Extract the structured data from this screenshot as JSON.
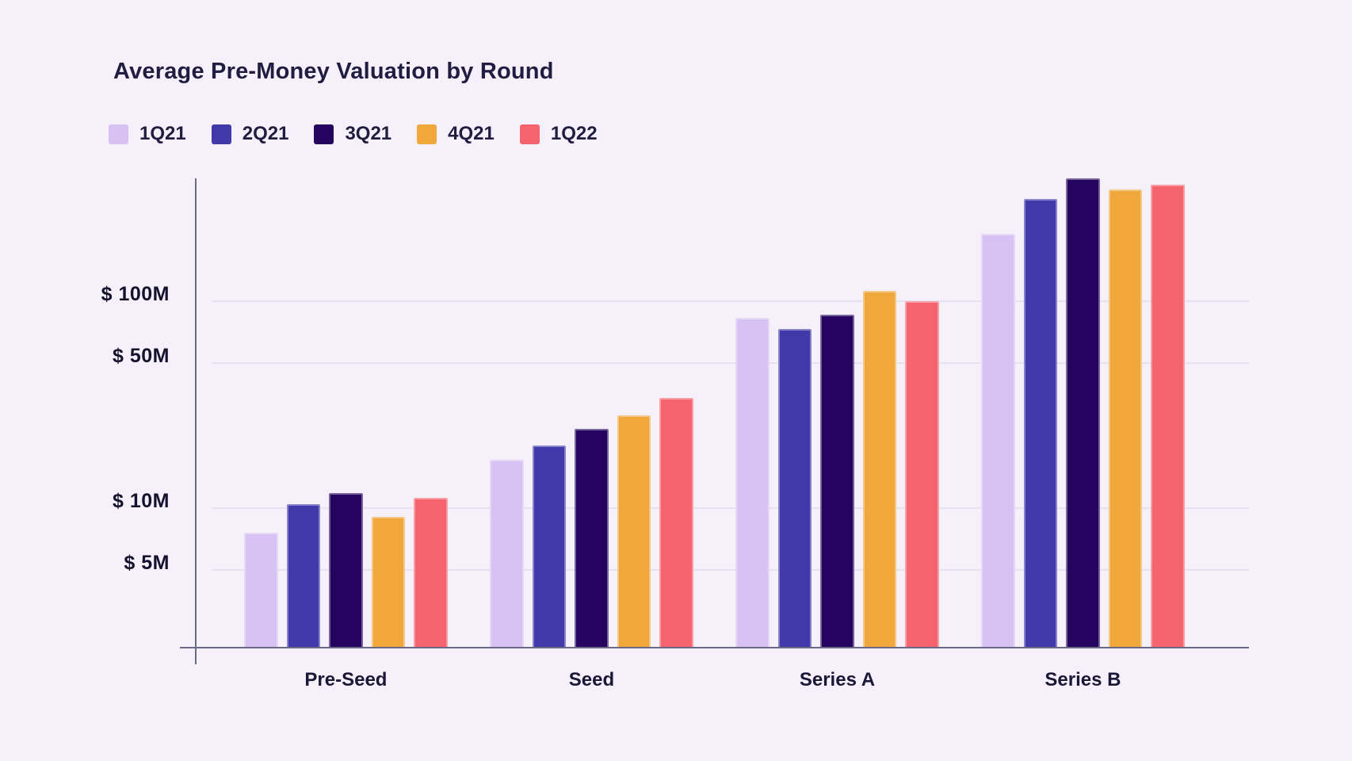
{
  "title": "Average Pre-Money Valuation by Round",
  "colors": {
    "background": "#f6f0fb",
    "text": "#201d41",
    "axis_line": "#6b6b86",
    "gridline": "#e6e1f0"
  },
  "chart_data": {
    "type": "bar",
    "subtype": "grouped",
    "y_scale": "log",
    "title": "Average Pre-Money Valuation by Round",
    "xlabel": "",
    "ylabel": "",
    "unit": "USD millions",
    "grid": "horizontal",
    "legend_position": "top-left",
    "categories": [
      "Pre-Seed",
      "Seed",
      "Series A",
      "Series B"
    ],
    "series": [
      {
        "name": "1Q21",
        "color": "#d7c2f3",
        "values_m": [
          7.6,
          17,
          83,
          210
        ]
      },
      {
        "name": "2Q21",
        "color": "#4139a9",
        "values_m": [
          10.4,
          20,
          73,
          310
        ]
      },
      {
        "name": "3Q21",
        "color": "#24045e",
        "values_m": [
          11.8,
          24,
          86,
          390
        ]
      },
      {
        "name": "4Q21",
        "color": "#f0a73b",
        "values_m": [
          9,
          28,
          112,
          345
        ]
      },
      {
        "name": "1Q22",
        "color": "#f5636e",
        "values_m": [
          11.2,
          34,
          100,
          365
        ]
      }
    ],
    "y_ticks": [
      {
        "label": "$ 100M",
        "value": 100
      },
      {
        "label": "$ 50M",
        "value": 50
      },
      {
        "label": "$ 10M",
        "value": 10
      },
      {
        "label": "$ 5M",
        "value": 5
      }
    ],
    "y_axis_range_m": [
      2.1,
      400
    ]
  }
}
